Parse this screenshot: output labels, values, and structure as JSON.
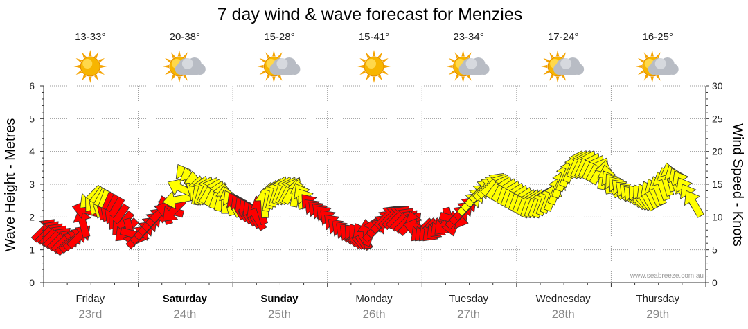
{
  "chart_data": {
    "type": "line",
    "title": "7 day wind & wave forecast for Menzies",
    "ylabel_left": "Wave Height - Metres",
    "ylabel_right": "Wind Speed - Knots",
    "ylim_left": [
      0,
      6
    ],
    "ylim_right": [
      0,
      30
    ],
    "yticks_left": [
      "0",
      "1",
      "2",
      "3",
      "4",
      "5",
      "6"
    ],
    "yticks_right": [
      "0",
      "5",
      "10",
      "15",
      "20",
      "25",
      "30"
    ],
    "grid": true,
    "credit": "www.seabreeze.com.au",
    "days": [
      {
        "name": "Friday",
        "date": "23rd",
        "temp": "13-33°",
        "weather": "sunny-icon",
        "bold": false
      },
      {
        "name": "Saturday",
        "date": "24th",
        "temp": "20-38°",
        "weather": "partly-cloudy-icon",
        "bold": true
      },
      {
        "name": "Sunday",
        "date": "25th",
        "temp": "15-28°",
        "weather": "partly-cloudy-icon",
        "bold": true
      },
      {
        "name": "Monday",
        "date": "26th",
        "temp": "15-41°",
        "weather": "sunny-icon",
        "bold": false
      },
      {
        "name": "Tuesday",
        "date": "27th",
        "temp": "23-34°",
        "weather": "partly-cloudy-icon",
        "bold": false
      },
      {
        "name": "Wednesday",
        "date": "28th",
        "temp": "17-24°",
        "weather": "partly-cloudy-icon",
        "bold": false
      },
      {
        "name": "Thursday",
        "date": "29th",
        "temp": "16-25°",
        "weather": "partly-cloudy-icon",
        "bold": false
      }
    ],
    "wind_series": {
      "name": "Wind Speed - Knots",
      "color_high": "#ffff00",
      "color_low": "#ff0000",
      "threshold_knots": 12,
      "hours": [
        0,
        3,
        6,
        9,
        12,
        15,
        18,
        21,
        24,
        27,
        30,
        33,
        36,
        39,
        42,
        45,
        48,
        51,
        54,
        57,
        60,
        63,
        66,
        69,
        72,
        75,
        78,
        81,
        84,
        87,
        90,
        93,
        96,
        99,
        102,
        105,
        108,
        111,
        114,
        117,
        120,
        123,
        126,
        129,
        132,
        135,
        138,
        141,
        144,
        147,
        150,
        153,
        156,
        159,
        162,
        165
      ],
      "knots": [
        8,
        7,
        6,
        7,
        13,
        12,
        11,
        8,
        7,
        9,
        11,
        11,
        16,
        14,
        14,
        13,
        12,
        11,
        10,
        13,
        14,
        14,
        13,
        11,
        10,
        8,
        7,
        7,
        8,
        10,
        10,
        9,
        8,
        8,
        9,
        10,
        12,
        14,
        15,
        14,
        13,
        12,
        12,
        13,
        16,
        18,
        18,
        17,
        15,
        14,
        13,
        13,
        14,
        16,
        15,
        12
      ],
      "direction_deg": [
        45,
        45,
        45,
        45,
        225,
        200,
        210,
        225,
        45,
        45,
        45,
        225,
        330,
        10,
        30,
        15,
        330,
        330,
        330,
        10,
        20,
        30,
        330,
        315,
        315,
        315,
        315,
        330,
        45,
        45,
        45,
        45,
        225,
        225,
        225,
        45,
        45,
        45,
        45,
        20,
        20,
        20,
        20,
        20,
        20,
        25,
        25,
        30,
        330,
        315,
        315,
        330,
        340,
        345,
        330,
        330
      ]
    }
  }
}
